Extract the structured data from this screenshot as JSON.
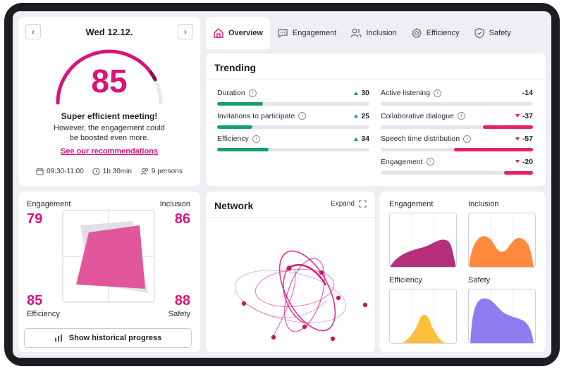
{
  "meeting": {
    "date": "Wed 12.12.",
    "score": "85",
    "score_fraction": 0.85,
    "headline": "Super efficient meeting!",
    "description": "However, the engagement could be boosted even more.",
    "recommendations_link": "See our recommendations",
    "time": "09:30-11:00",
    "duration": "1h 30min",
    "persons": "9 persons",
    "prev_icon": "chevron-left-icon",
    "next_icon": "chevron-right-icon"
  },
  "radar": {
    "engagement_label": "Engagement",
    "engagement_value": "79",
    "inclusion_label": "Inclusion",
    "inclusion_value": "86",
    "efficiency_label": "Efficiency",
    "efficiency_value": "85",
    "safety_label": "Safety",
    "safety_value": "88",
    "history_button": "Show historical progress"
  },
  "tabs": [
    {
      "label": "Overview",
      "icon": "home-icon",
      "active": true
    },
    {
      "label": "Engagement",
      "icon": "chat-icon",
      "active": false
    },
    {
      "label": "Inclusion",
      "icon": "users-icon",
      "active": false
    },
    {
      "label": "Efficiency",
      "icon": "gear-icon",
      "active": false
    },
    {
      "label": "Safety",
      "icon": "shield-icon",
      "active": false
    }
  ],
  "trending": {
    "title": "Trending",
    "items": [
      {
        "name": "Duration",
        "delta": "30",
        "direction": "up",
        "fill": 0.3
      },
      {
        "name": "Invitations to participate",
        "delta": "25",
        "direction": "up",
        "fill": 0.23
      },
      {
        "name": "Efficiency",
        "delta": "34",
        "direction": "up",
        "fill": 0.34
      },
      {
        "name": "Active listening",
        "delta": "-14",
        "direction": "none",
        "fill": 0.0
      },
      {
        "name": "Collaborative dialogue",
        "delta": "-37",
        "direction": "down",
        "fill": 0.33
      },
      {
        "name": "Speech time distribution",
        "delta": "-57",
        "direction": "down",
        "fill": 0.52
      },
      {
        "name": "Engagement",
        "delta": "-20",
        "direction": "down",
        "fill": 0.19
      }
    ],
    "colors": {
      "positive": "#14a06a",
      "negative": "#e91e63"
    }
  },
  "network": {
    "title": "Network",
    "expand_label": "Expand"
  },
  "distributions": [
    {
      "label": "Engagement",
      "color": "#b5307a"
    },
    {
      "label": "Inclusion",
      "color": "#ff8a3d"
    },
    {
      "label": "Efficiency",
      "color": "#fbbf3c"
    },
    {
      "label": "Safety",
      "color": "#8f7cf0"
    }
  ],
  "colors": {
    "accent": "#d8137a"
  }
}
